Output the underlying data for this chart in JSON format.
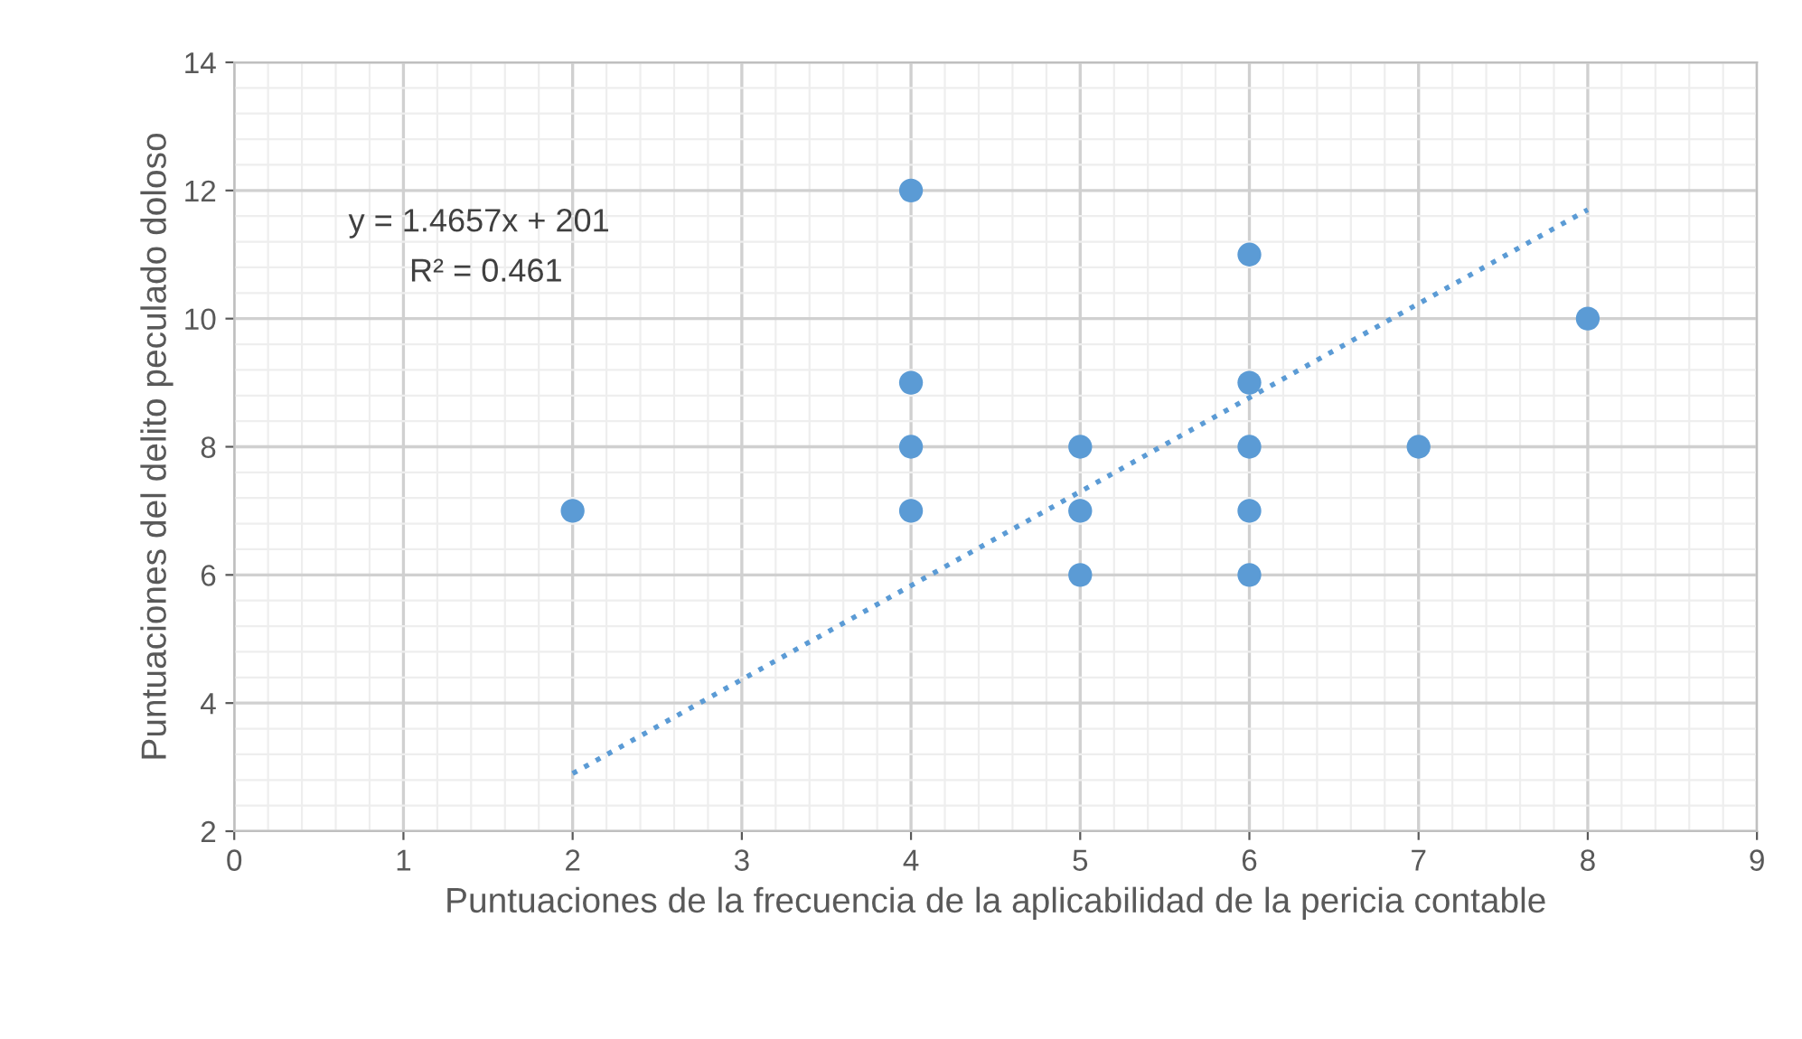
{
  "chart_data": {
    "type": "scatter",
    "xlabel": "Puntuaciones de la frecuencia de la aplicabilidad de la pericia contable",
    "ylabel": "Puntuaciones del delito peculado doloso",
    "annotations": [
      "y = 1.4657x + 201",
      "R² = 0.461"
    ],
    "xlim": [
      0,
      9
    ],
    "xticks": [
      0,
      1,
      2,
      3,
      4,
      5,
      6,
      7,
      8,
      9
    ],
    "ylim": [
      2,
      14
    ],
    "yticks": [
      2,
      4,
      6,
      8,
      10,
      12,
      14
    ],
    "grid": true,
    "marker": "circle",
    "series": [
      {
        "color": "#5b9bd5",
        "x": [
          2,
          4,
          4,
          4,
          4,
          5,
          5,
          5,
          6,
          6,
          6,
          6,
          6,
          7,
          8
        ],
        "values": [
          7,
          12,
          9,
          8,
          7,
          8,
          7,
          6,
          11,
          9,
          8,
          7,
          6,
          8,
          10
        ]
      },
      {
        "type": "line",
        "color": "#5b9bd5",
        "line_style": "dotted",
        "marker": "none",
        "x": [
          2,
          8
        ],
        "values": [
          2.9,
          11.7
        ]
      }
    ]
  }
}
